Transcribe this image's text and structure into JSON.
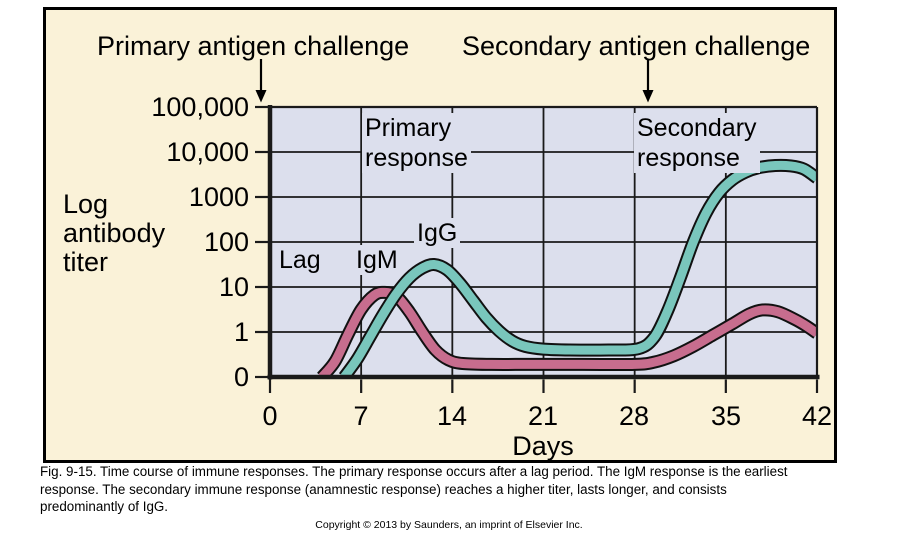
{
  "chart_data": {
    "type": "line",
    "title": "",
    "xlabel": "Days",
    "ylabel": "Log antibody titer",
    "ylabel_lines": [
      "Log",
      "antibody",
      "titer"
    ],
    "x_ticks": [
      0,
      7,
      14,
      21,
      28,
      35,
      42
    ],
    "x_range": [
      0,
      42
    ],
    "y_tick_labels": [
      "100,000",
      "10,000",
      "1000",
      "100",
      "10",
      "1",
      "0"
    ],
    "y_scale": "logarithmic; horizontal gridlines one decade apart, bottom line labeled 0",
    "grid": true,
    "legend_position": "inline labels on chart (IgM, IgG)",
    "level_encoding": "point format [day, v] where v = decades above the 0 baseline: 0 -> 0, 1 -> titer 1, 2 -> 10, 3 -> 100, 4 -> 1000, 5 -> 10,000, 6 -> 100,000",
    "series": [
      {
        "name": "IgM",
        "color_key": "igm",
        "summary": "earliest response: rises from ~day 4, primary peak ~10 at day 9, falls below 1 by day 15, flat until ~day 29, small secondary peak ~3 at ~day 38, ~1 at day 42",
        "points": [
          [
            4,
            0
          ],
          [
            5,
            0.35
          ],
          [
            6,
            0.95
          ],
          [
            7,
            1.5
          ],
          [
            8,
            1.82
          ],
          [
            8.8,
            1.88
          ],
          [
            9.7,
            1.8
          ],
          [
            10.7,
            1.45
          ],
          [
            11.7,
            1.0
          ],
          [
            12.7,
            0.6
          ],
          [
            13.7,
            0.38
          ],
          [
            14.8,
            0.3
          ],
          [
            17,
            0.28
          ],
          [
            20,
            0.28
          ],
          [
            24,
            0.28
          ],
          [
            28,
            0.28
          ],
          [
            29.5,
            0.33
          ],
          [
            31,
            0.47
          ],
          [
            32.5,
            0.68
          ],
          [
            34,
            0.93
          ],
          [
            35.5,
            1.18
          ],
          [
            36.8,
            1.4
          ],
          [
            37.8,
            1.49
          ],
          [
            39,
            1.45
          ],
          [
            40.3,
            1.28
          ],
          [
            41.2,
            1.13
          ],
          [
            42,
            0.97
          ]
        ]
      },
      {
        "name": "IgG",
        "color_key": "igg",
        "summary": "rises from ~day 6, primary peak ~30 at day 12-13, falls below 1 by day 20, flat until ~day 29, steep secondary rise to ~4000-5000 plateau by day 37-41, slight decline at day 42",
        "points": [
          [
            5.7,
            0
          ],
          [
            6.7,
            0.4
          ],
          [
            7.7,
            0.9
          ],
          [
            8.7,
            1.4
          ],
          [
            9.7,
            1.85
          ],
          [
            10.7,
            2.2
          ],
          [
            11.7,
            2.42
          ],
          [
            12.6,
            2.5
          ],
          [
            13.6,
            2.38
          ],
          [
            14.6,
            2.08
          ],
          [
            15.6,
            1.7
          ],
          [
            16.6,
            1.32
          ],
          [
            17.6,
            1.02
          ],
          [
            18.6,
            0.8
          ],
          [
            19.6,
            0.68
          ],
          [
            21,
            0.62
          ],
          [
            23,
            0.6
          ],
          [
            26,
            0.6
          ],
          [
            28.3,
            0.63
          ],
          [
            29.5,
            0.88
          ],
          [
            30.5,
            1.45
          ],
          [
            31.5,
            2.2
          ],
          [
            32.5,
            3.0
          ],
          [
            33.5,
            3.65
          ],
          [
            34.5,
            4.1
          ],
          [
            35.5,
            4.38
          ],
          [
            36.5,
            4.55
          ],
          [
            37.5,
            4.65
          ],
          [
            38.8,
            4.7
          ],
          [
            40,
            4.69
          ],
          [
            41,
            4.62
          ],
          [
            42,
            4.42
          ]
        ]
      }
    ],
    "annotations": {
      "primary_challenge": "Primary antigen challenge",
      "secondary_challenge": "Secondary antigen challenge",
      "region_lag": "Lag",
      "curve_igm": "IgM",
      "curve_igg": "IgG",
      "primary_response_line1": "Primary",
      "primary_response_line2": "response",
      "secondary_response_line1": "Secondary",
      "secondary_response_line2": "response"
    },
    "colors": {
      "igm": "#c76d8e",
      "igg": "#79c6bc",
      "outline": "#111111",
      "plot_bg": "#dcdfed",
      "grid": "#1a1a1a",
      "panel_bg": "#faf2d8"
    }
  },
  "caption": {
    "lines": [
      "Fig. 9-15. Time course of immune responses. The primary response occurs after a lag period. The IgM response is the earliest",
      "response. The secondary immune response (anamnestic response) reaches a higher titer, lasts longer, and consists",
      "predominantly of IgG."
    ],
    "copyright": "Copyright © 2013 by Saunders, an imprint of Elsevier Inc."
  }
}
